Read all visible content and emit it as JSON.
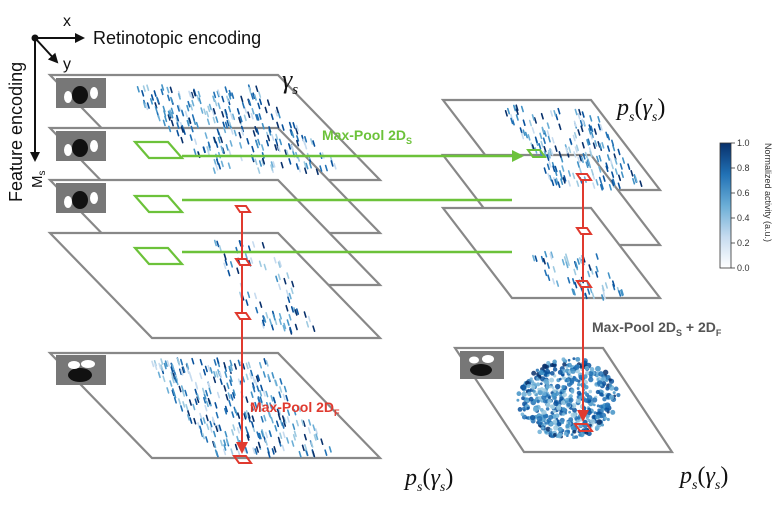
{
  "axes": {
    "x_label": "x",
    "y_label": "y",
    "retinotopic_label": "Retinotopic encoding",
    "feature_label": "Feature encoding",
    "ms_label": "M",
    "ms_sub": "s"
  },
  "labels": {
    "gamma_s": "γ",
    "gamma_sub": "s",
    "ps_gamma": "p",
    "ps_sub": "s",
    "ps_open": "(",
    "ps_inner": "γ",
    "ps_inner_sub": "s",
    "ps_close": ")"
  },
  "operations": {
    "maxpool_s": "Max-Pool 2D",
    "maxpool_s_sub": "S",
    "maxpool_f": "Max-Pool 2D",
    "maxpool_f_sub": "F",
    "maxpool_sf_a": "Max-Pool 2D",
    "maxpool_sf_sub1": "S",
    "maxpool_sf_mid": " + 2D",
    "maxpool_sf_sub2": "F"
  },
  "colorbar": {
    "title": "Normalized activity (a.u.)",
    "ticks": [
      "1.0",
      "0.8",
      "0.6",
      "0.4",
      "0.2",
      "0.0"
    ]
  },
  "colors": {
    "green": "#6cc23a",
    "red": "#e03a2f",
    "plane_edge": "#888888",
    "activity_dark": "#08306b",
    "activity_light": "#c6dbef"
  }
}
